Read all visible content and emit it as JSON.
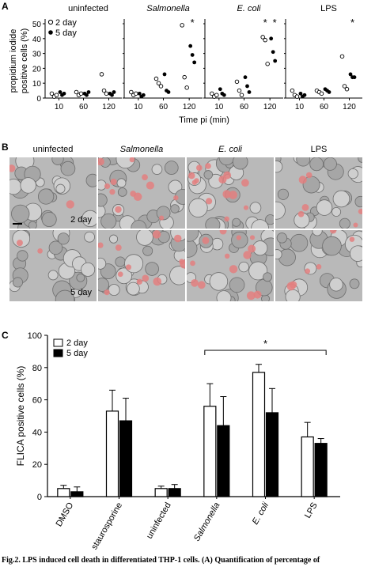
{
  "panel_labels": {
    "a": "A",
    "b": "B",
    "c": "C"
  },
  "chart_data": [
    {
      "type": "scatter",
      "ylabel_line1": "propidium iodide",
      "ylabel_line2": "positive cells (%)",
      "xlabel": "Time pi (min)",
      "ylim": [
        0,
        50
      ],
      "yticks": [
        0,
        10,
        20,
        30,
        40,
        50
      ],
      "x_categories": [
        "10",
        "60",
        "120"
      ],
      "legend": [
        {
          "marker": "open",
          "label": "2 day"
        },
        {
          "marker": "filled",
          "label": "5 day"
        }
      ],
      "panels": [
        {
          "title": "uninfected",
          "italic": false,
          "points": {
            "2day": {
              "10": [
                3,
                1,
                2
              ],
              "60": [
                4,
                2,
                3
              ],
              "120": [
                16,
                5,
                3
              ]
            },
            "5day": {
              "10": [
                4,
                2,
                3
              ],
              "60": [
                3,
                2,
                4
              ],
              "120": [
                3,
                2,
                4
              ]
            }
          },
          "significant": []
        },
        {
          "title": "Salmonella",
          "italic": true,
          "points": {
            "2day": {
              "10": [
                4,
                2,
                3
              ],
              "60": [
                13,
                10,
                8
              ],
              "120": [
                49,
                14,
                7
              ]
            },
            "5day": {
              "10": [
                3,
                1,
                2
              ],
              "60": [
                16,
                5,
                4
              ],
              "120": [
                35,
                29,
                24
              ]
            }
          },
          "significant": [
            "120"
          ]
        },
        {
          "title": "E. coli",
          "italic": true,
          "points": {
            "2day": {
              "10": [
                3,
                1,
                2
              ],
              "60": [
                11,
                5,
                2
              ],
              "120": [
                41,
                39,
                23
              ]
            },
            "5day": {
              "10": [
                6,
                3,
                2
              ],
              "60": [
                14,
                8,
                4
              ],
              "120": [
                40,
                31,
                25
              ]
            }
          },
          "significant": [
            "120",
            "120b"
          ]
        },
        {
          "title": "LPS",
          "italic": false,
          "points": {
            "2day": {
              "10": [
                5,
                2,
                1
              ],
              "60": [
                5,
                4,
                3
              ],
              "120": [
                28,
                8,
                6
              ]
            },
            "5day": {
              "10": [
                3,
                1,
                2
              ],
              "60": [
                6,
                5,
                4
              ],
              "120": [
                16,
                14,
                14
              ]
            }
          },
          "significant": [
            "120"
          ]
        }
      ]
    },
    {
      "type": "bar",
      "ylabel": "FLICA positive cells (%)",
      "ylim": [
        0,
        100
      ],
      "yticks": [
        0,
        20,
        40,
        60,
        80,
        100
      ],
      "categories": [
        "DMSO",
        "staurosporine",
        "uninfected",
        "Salmonella",
        "E. coli",
        "LPS"
      ],
      "italic_categories": [
        "Salmonella",
        "E. coli"
      ],
      "series": [
        {
          "name": "2 day",
          "fill": "open",
          "values": [
            5,
            53,
            5,
            56,
            77,
            37
          ],
          "errors": [
            2,
            13,
            1.5,
            14,
            5,
            9
          ]
        },
        {
          "name": "5 day",
          "fill": "filled",
          "values": [
            3,
            47,
            5,
            44,
            52,
            33
          ],
          "errors": [
            3,
            14,
            2.5,
            18,
            15,
            3
          ]
        }
      ],
      "significance": {
        "label": "*",
        "from": "Salmonella",
        "to": "LPS"
      }
    }
  ],
  "micrographs": {
    "columns": [
      {
        "label": "uninfected",
        "italic": false,
        "red_cells": 2
      },
      {
        "label": "Salmonella",
        "italic": true,
        "red_cells": 12
      },
      {
        "label": "E. coli",
        "italic": true,
        "red_cells": 13
      },
      {
        "label": "LPS",
        "italic": false,
        "red_cells": 6
      }
    ],
    "rows": [
      {
        "label": "2 day"
      },
      {
        "label": "5 day"
      }
    ]
  },
  "caption": "Fig.2. LPS induced cell death in differentiated THP-1 cells. (A) Quantification of percentage of"
}
